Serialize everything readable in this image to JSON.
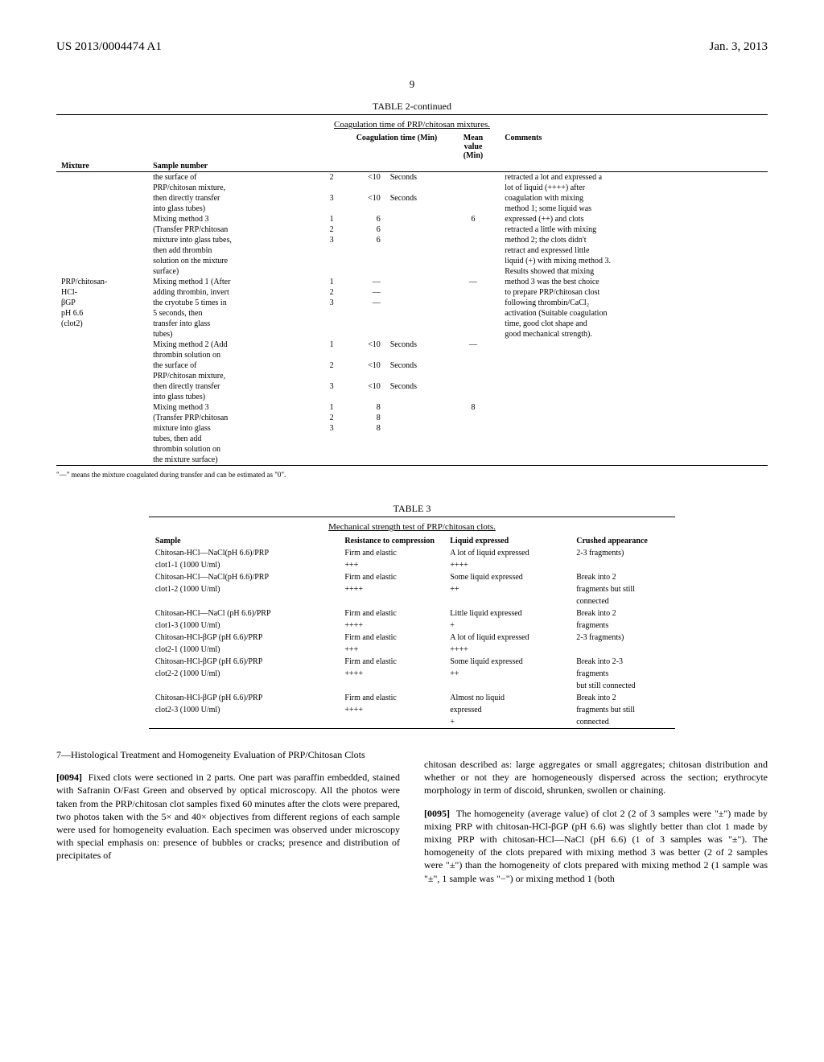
{
  "header": {
    "left": "US 2013/0004474 A1",
    "right": "Jan. 3, 2013"
  },
  "page_number": "9",
  "table2": {
    "title": "TABLE 2-continued",
    "subtitle": "Coagulation time of PRP/chitosan mixtures.",
    "columns": {
      "mixture": "Mixture",
      "sample": "Sample number",
      "coag_time": "Coagulation time (Min)",
      "mean": "Mean value (Min)",
      "comments": "Comments"
    },
    "groups": [
      {
        "mixture": "",
        "method_labels": [
          "the surface of",
          "PRP/chitosan mixture,",
          "then directly transfer",
          "into glass tubes)",
          "Mixing method 3",
          "(Transfer PRP/chitosan",
          "mixture into glass tubes,",
          "then add thrombin",
          "solution on the mixture",
          "surface)"
        ],
        "rows": [
          {
            "n": "2",
            "t": "<10",
            "u": "Seconds",
            "m": ""
          },
          {
            "n": "",
            "t": "",
            "u": "",
            "m": ""
          },
          {
            "n": "3",
            "t": "<10",
            "u": "Seconds",
            "m": ""
          },
          {
            "n": "",
            "t": "",
            "u": "",
            "m": ""
          },
          {
            "n": "1",
            "t": "6",
            "u": "",
            "m": "6"
          },
          {
            "n": "2",
            "t": "6",
            "u": "",
            "m": ""
          },
          {
            "n": "3",
            "t": "6",
            "u": "",
            "m": ""
          },
          {
            "n": "",
            "t": "",
            "u": "",
            "m": ""
          },
          {
            "n": "",
            "t": "",
            "u": "",
            "m": ""
          },
          {
            "n": "",
            "t": "",
            "u": "",
            "m": ""
          }
        ],
        "comments": [
          "retracted a lot and expressed a",
          "lot of liquid (++++) after",
          "coagulation with mixing",
          "method 1; some liquid was",
          "expressed (++) and clots",
          "retracted a little with mixing",
          "method 2; the clots didn't",
          "retract and expressed little",
          "liquid (+) with mixing method 3.",
          "Results showed that mixing"
        ]
      },
      {
        "mixture_lines": [
          "PRP/chitosan-",
          "HCl-",
          "βGP",
          "pH 6.6",
          "(clot2)"
        ],
        "method_labels": [
          "Mixing method 1 (After",
          "adding thrombin, invert",
          "the cryotube 5 times in",
          "5 seconds, then",
          "transfer into glass",
          "tubes)",
          "Mixing method 2 (Add",
          "thrombin solution on",
          "the surface of",
          "PRP/chitosan mixture,",
          "then directly transfer",
          "into glass tubes)",
          "Mixing method 3",
          "(Transfer PRP/chitosan",
          "mixture into glass",
          "tubes, then add",
          "thrombin solution on",
          "the mixture surface)"
        ],
        "rows": [
          {
            "n": "1",
            "t": "—",
            "u": "",
            "m": "—"
          },
          {
            "n": "2",
            "t": "—",
            "u": "",
            "m": ""
          },
          {
            "n": "3",
            "t": "—",
            "u": "",
            "m": ""
          },
          {
            "n": "",
            "t": "",
            "u": "",
            "m": ""
          },
          {
            "n": "",
            "t": "",
            "u": "",
            "m": ""
          },
          {
            "n": "",
            "t": "",
            "u": "",
            "m": ""
          },
          {
            "n": "1",
            "t": "<10",
            "u": "Seconds",
            "m": "—"
          },
          {
            "n": "",
            "t": "",
            "u": "",
            "m": ""
          },
          {
            "n": "2",
            "t": "<10",
            "u": "Seconds",
            "m": ""
          },
          {
            "n": "",
            "t": "",
            "u": "",
            "m": ""
          },
          {
            "n": "3",
            "t": "<10",
            "u": "Seconds",
            "m": ""
          },
          {
            "n": "",
            "t": "",
            "u": "",
            "m": ""
          },
          {
            "n": "1",
            "t": "8",
            "u": "",
            "m": "8"
          },
          {
            "n": "2",
            "t": "8",
            "u": "",
            "m": ""
          },
          {
            "n": "3",
            "t": "8",
            "u": "",
            "m": ""
          },
          {
            "n": "",
            "t": "",
            "u": "",
            "m": ""
          },
          {
            "n": "",
            "t": "",
            "u": "",
            "m": ""
          },
          {
            "n": "",
            "t": "",
            "u": "",
            "m": ""
          }
        ],
        "comments": [
          "method 3 was the best choice",
          "to prepare PRP/chitosan clost",
          "following thrombin/CaCl₂",
          "activation (Suitable coagulation",
          "time, good clot shape and",
          "good mechanical strength).",
          "",
          "",
          "",
          "",
          "",
          "",
          "",
          "",
          "",
          "",
          "",
          ""
        ]
      }
    ],
    "footnote": "\"—\" means the mixture coagulated during transfer and can be estimated as \"0\"."
  },
  "table3": {
    "title": "TABLE 3",
    "subtitle": "Mechanical strength test of PRP/chitosan clots.",
    "columns": {
      "sample": "Sample",
      "resistance": "Resistance to compression",
      "liquid": "Liquid expressed",
      "crushed": "Crushed appearance"
    },
    "rows": [
      {
        "s1": "Chitosan-HCl—NaCl(pH 6.6)/PRP",
        "s2": "clot1-1 (1000 U/ml)",
        "r1": "Firm and elastic",
        "r2": "+++",
        "l1": "A lot of liquid expressed",
        "l2": "++++",
        "c1": "2-3 fragments)",
        "c2": ""
      },
      {
        "s1": "Chitosan-HCl—NaCl(pH 6.6)/PRP",
        "s2": "clot1-2 (1000 U/ml)",
        "r1": "Firm and elastic",
        "r2": "++++",
        "l1": "Some liquid expressed",
        "l2": "++",
        "c1": "Break into 2",
        "c2": "fragments but still",
        "c3": "connected"
      },
      {
        "s1": "Chitosan-HCl—NaCl (pH 6.6)/PRP",
        "s2": "clot1-3 (1000 U/ml)",
        "r1": "Firm and elastic",
        "r2": "++++",
        "l1": "Little liquid expressed",
        "l2": "+",
        "c1": "Break into 2",
        "c2": "fragments"
      },
      {
        "s1": "Chitosan-HCl-βGP (pH 6.6)/PRP",
        "s2": "clot2-1 (1000 U/ml)",
        "r1": "Firm and elastic",
        "r2": "+++",
        "l1": "A lot of liquid expressed",
        "l2": "++++",
        "c1": "2-3 fragments)",
        "c2": ""
      },
      {
        "s1": "Chitosan-HCl-βGP (pH 6.6)/PRP",
        "s2": "clot2-2 (1000 U/ml)",
        "r1": "Firm and elastic",
        "r2": "++++",
        "l1": "Some liquid expressed",
        "l2": "++",
        "c1": "Break into 2-3",
        "c2": "fragments",
        "c3": "but still connected"
      },
      {
        "s1": "Chitosan-HCl-βGP (pH 6.6)/PRP",
        "s2": "clot2-3 (1000 U/ml)",
        "r1": "Firm and elastic",
        "r2": "++++",
        "l1": "Almost no liquid",
        "l2": "expressed",
        "l3": "+",
        "c1": "Break into 2",
        "c2": "fragments but still",
        "c3": "connected"
      }
    ]
  },
  "body": {
    "section_head": "7—Histological Treatment and Homogeneity Evaluation of PRP/Chitosan Clots",
    "para94_num": "[0094]",
    "para94": "Fixed clots were sectioned in 2 parts. One part was paraffin embedded, stained with Safranin O/Fast Green and observed by optical microscopy. All the photos were taken from the PRP/chitosan clot samples fixed 60 minutes after the clots were prepared, two photos taken with the 5× and 40× objectives from different regions of each sample were used for homogeneity evaluation. Each specimen was observed under microscopy with special emphasis on: presence of bubbles or cracks; presence and distribution of precipitates of",
    "col2_top": "chitosan described as: large aggregates or small aggregates; chitosan distribution and whether or not they are homogeneously dispersed across the section; erythrocyte morphology in term of discoid, shrunken, swollen or chaining.",
    "para95_num": "[0095]",
    "para95": "The homogeneity (average value) of clot 2 (2 of 3 samples were \"±\") made by mixing PRP with chitosan-HCl-βGP (pH 6.6) was slightly better than clot 1 made by mixing PRP with chitosan-HCl—NaCl (pH 6.6) (1 of 3 samples was \"±\"). The homogeneity of the clots prepared with mixing method 3 was better (2 of 2 samples were \"±\") than the homogeneity of clots prepared with mixing method 2 (1 sample was \"±\", 1 sample was \"−\") or mixing method 1 (both"
  }
}
